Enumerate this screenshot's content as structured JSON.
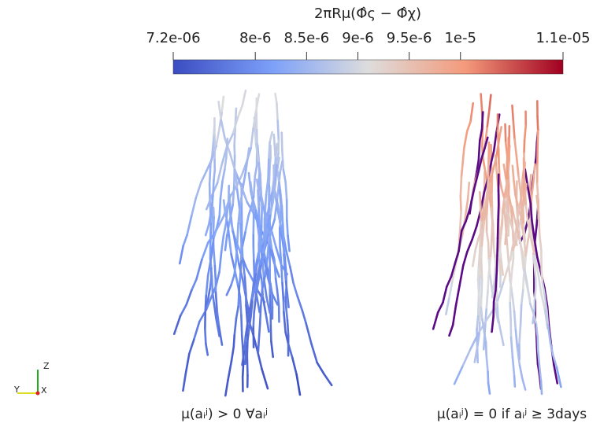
{
  "colorbar": {
    "title": "2πRμ(Φ̂ς − Φ̂χ)",
    "range": [
      7.2e-06,
      1.1e-05
    ],
    "ticks": [
      {
        "value": 7.2e-06,
        "label": "7.2e-06"
      },
      {
        "value": 8e-06,
        "label": "8e-6"
      },
      {
        "value": 8.5e-06,
        "label": "8.5e-6"
      },
      {
        "value": 9e-06,
        "label": "9e-6"
      },
      {
        "value": 9.5e-06,
        "label": "9.5e-6"
      },
      {
        "value": 1e-05,
        "label": "1e-5"
      },
      {
        "value": 1.1e-05,
        "label": "1.1e-05"
      }
    ]
  },
  "panels": [
    {
      "caption": "μ(aᵢʲ) > 0 ∀aᵢʲ"
    },
    {
      "caption": "μ(aᵢʲ) = 0 if aᵢʲ ≥ 3days"
    }
  ],
  "axes": {
    "z": "Z",
    "y": "Y",
    "x": "X"
  }
}
